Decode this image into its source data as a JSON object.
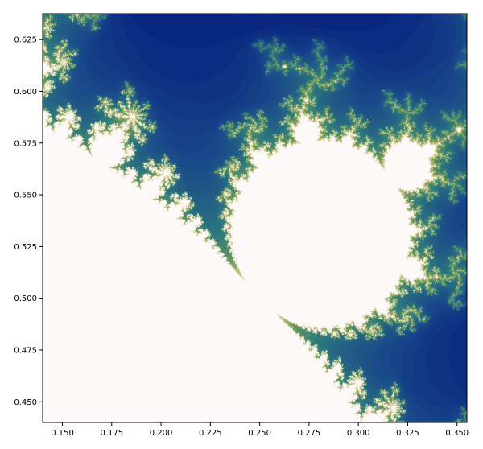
{
  "chart_data": {
    "type": "heatmap",
    "title": "",
    "xlabel": "",
    "ylabel": "",
    "xlim": [
      0.14,
      0.355
    ],
    "ylim": [
      0.44,
      0.6375
    ],
    "x_ticks": [
      "0.150",
      "0.175",
      "0.200",
      "0.225",
      "0.250",
      "0.275",
      "0.300",
      "0.325",
      "0.350"
    ],
    "y_ticks": [
      "0.450",
      "0.475",
      "0.500",
      "0.525",
      "0.550",
      "0.575",
      "0.600",
      "0.625"
    ],
    "max_iterations": 200,
    "colormap": [
      "#000000",
      "#000b3a",
      "#00137a",
      "#1a4a8a",
      "#2e7a7e",
      "#6b9a5a",
      "#c8c070",
      "#fdf7f7"
    ],
    "interior_color": "#fdf9f9",
    "grid": false
  }
}
